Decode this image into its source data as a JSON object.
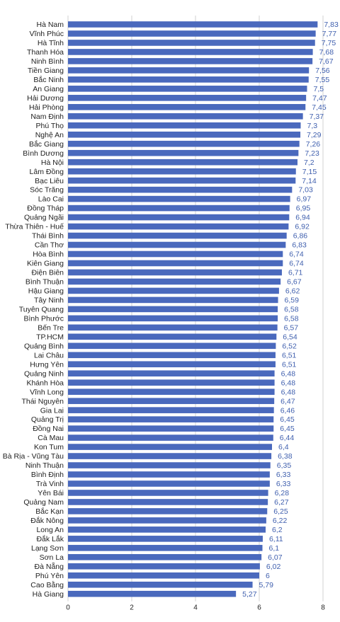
{
  "chart_data": {
    "type": "bar",
    "orientation": "horizontal",
    "categories": [
      "Hà Nam",
      "Vĩnh Phúc",
      "Hà Tĩnh",
      "Thanh Hóa",
      "Ninh Bình",
      "Tiền Giang",
      "Bắc Ninh",
      "An Giang",
      "Hải Dương",
      "Hải Phòng",
      "Nam Định",
      "Phú Thọ",
      "Nghệ An",
      "Bắc Giang",
      "Bình Dương",
      "Hà Nội",
      "Lâm Đồng",
      "Bạc Liêu",
      "Sóc Trăng",
      "Lào Cai",
      "Đồng Tháp",
      "Quảng Ngãi",
      "Thừa Thiên - Huế",
      "Thái Bình",
      "Cần Thơ",
      "Hòa Bình",
      "Kiên Giang",
      "Điện Biên",
      "Bình Thuận",
      "Hậu Giang",
      "Tây Ninh",
      "Tuyên Quang",
      "Bình Phước",
      "Bến Tre",
      "TP.HCM",
      "Quảng Bình",
      "Lai Châu",
      "Hưng Yên",
      "Quảng Ninh",
      "Khánh Hòa",
      "Vĩnh Long",
      "Thái Nguyên",
      "Gia Lai",
      "Quảng Trị",
      "Đồng Nai",
      "Cà Mau",
      "Kon Tum",
      "Bà Rịa - Vũng Tàu",
      "Ninh Thuận",
      "Bình Định",
      "Trà Vinh",
      "Yên Bái",
      "Quảng Nam",
      "Bắc Kạn",
      "Đắk Nông",
      "Long An",
      "Đắk Lắk",
      "Lạng Sơn",
      "Sơn La",
      "Đà Nẵng",
      "Phú Yên",
      "Cao Bằng",
      "Hà Giang"
    ],
    "values": [
      7.83,
      7.77,
      7.75,
      7.68,
      7.67,
      7.56,
      7.55,
      7.5,
      7.47,
      7.45,
      7.37,
      7.3,
      7.29,
      7.26,
      7.23,
      7.2,
      7.15,
      7.14,
      7.03,
      6.97,
      6.95,
      6.94,
      6.92,
      6.86,
      6.83,
      6.74,
      6.74,
      6.71,
      6.67,
      6.62,
      6.59,
      6.58,
      6.58,
      6.57,
      6.54,
      6.52,
      6.51,
      6.51,
      6.48,
      6.48,
      6.48,
      6.47,
      6.46,
      6.45,
      6.45,
      6.44,
      6.4,
      6.38,
      6.35,
      6.33,
      6.33,
      6.28,
      6.27,
      6.25,
      6.22,
      6.2,
      6.11,
      6.1,
      6.07,
      6.02,
      6,
      5.79,
      5.27
    ],
    "value_labels": [
      "7,83",
      "7,77",
      "7,75",
      "7,68",
      "7,67",
      "7,56",
      "7,55",
      "7,5",
      "7,47",
      "7,45",
      "7,37",
      "7,3",
      "7,29",
      "7,26",
      "7,23",
      "7,2",
      "7,15",
      "7,14",
      "7,03",
      "6,97",
      "6,95",
      "6,94",
      "6,92",
      "6,86",
      "6,83",
      "6,74",
      "6,74",
      "6,71",
      "6,67",
      "6,62",
      "6,59",
      "6,58",
      "6,58",
      "6,57",
      "6,54",
      "6,52",
      "6,51",
      "6,51",
      "6,48",
      "6,48",
      "6,48",
      "6,47",
      "6,46",
      "6,45",
      "6,45",
      "6,44",
      "6,4",
      "6,38",
      "6,35",
      "6,33",
      "6,33",
      "6,28",
      "6,27",
      "6,25",
      "6,22",
      "6,2",
      "6,11",
      "6,1",
      "6,07",
      "6,02",
      "6",
      "5,79",
      "5,27"
    ],
    "x_ticks": [
      0,
      2,
      4,
      6,
      8
    ],
    "x_tick_labels": [
      "0",
      "2",
      "4",
      "6",
      "8"
    ],
    "xlim": [
      0,
      8
    ],
    "grid": true,
    "legend": "none",
    "bar_color": "#4a69bd",
    "value_label_color": "#3f5fae"
  }
}
